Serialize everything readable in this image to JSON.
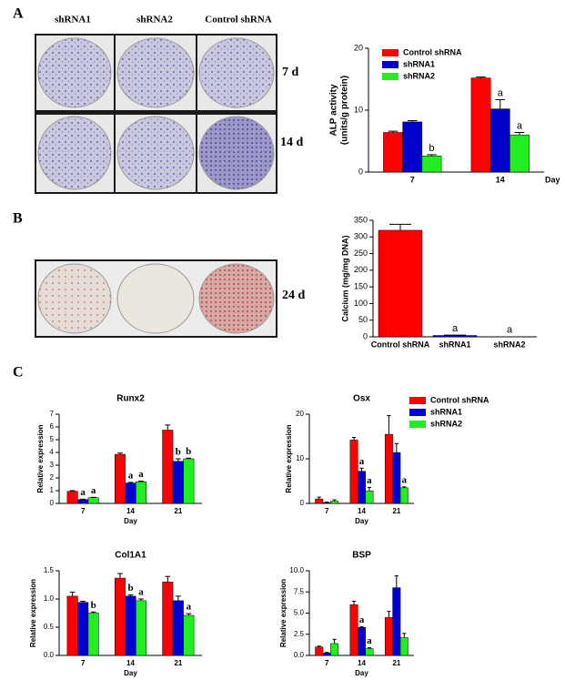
{
  "panel_labels": [
    "A",
    "B",
    "C"
  ],
  "photo_labels": {
    "columns": [
      "shRNA1",
      "shRNA2",
      "Control shRNA"
    ],
    "rows": [
      "7 d",
      "14 d",
      "24 d"
    ]
  },
  "chart_data": [
    {
      "type": "grouped_bar",
      "ylabel": [
        "ALP activity",
        "(units/g protein)"
      ],
      "xlabel": "Day",
      "categories": [
        "7",
        "14"
      ],
      "ylim": [
        0,
        20
      ],
      "yticks": [
        0,
        10,
        20
      ],
      "legend": "top-left",
      "grid": false,
      "series": [
        {
          "name": "Control shRNA",
          "color": "#ff0000",
          "values": [
            6.4,
            15.2
          ],
          "errors": [
            0.2,
            0.15
          ],
          "letters": [
            null,
            null
          ]
        },
        {
          "name": "shRNA1",
          "color": "#0000cc",
          "values": [
            8.1,
            10.2
          ],
          "errors": [
            0.2,
            1.5
          ],
          "letters": [
            null,
            "a"
          ]
        },
        {
          "name": "shRNA2",
          "color": "#22ee22",
          "values": [
            2.6,
            6.0
          ],
          "errors": [
            0.2,
            0.4
          ],
          "letters": [
            "b",
            "a"
          ]
        }
      ]
    },
    {
      "type": "bar",
      "ylabel": "Calcium (mg/mg DNA)",
      "categories": [
        "Control shRNA",
        "shRNA1",
        "shRNA2"
      ],
      "values": [
        320,
        4,
        0.5
      ],
      "errors": [
        18,
        1,
        0
      ],
      "letters": [
        null,
        "a",
        "a"
      ],
      "colors": [
        "#ff0000",
        "#0000cc",
        "#22ee22"
      ],
      "ylim": [
        0,
        350
      ],
      "yticks": [
        0,
        50,
        100,
        150,
        200,
        250,
        300,
        350
      ],
      "grid": false
    },
    {
      "type": "grouped_bar",
      "title": "Runx2",
      "ylabel": "Relative expression",
      "xlabel": "Day",
      "categories": [
        "7",
        "14",
        "21"
      ],
      "ylim": [
        0,
        7
      ],
      "yticks": [
        0,
        1,
        2,
        3,
        4,
        5,
        6,
        7
      ],
      "grid": false,
      "series": [
        {
          "color": "#ff0000",
          "values": [
            0.95,
            3.85,
            5.75
          ],
          "errors": [
            0.05,
            0.1,
            0.4
          ],
          "letters": [
            null,
            null,
            null
          ]
        },
        {
          "color": "#0000cc",
          "values": [
            0.3,
            1.6,
            3.3
          ],
          "errors": [
            0.03,
            0.05,
            0.2
          ],
          "letters": [
            "a",
            "a",
            "b"
          ]
        },
        {
          "color": "#22ee22",
          "values": [
            0.45,
            1.7,
            3.5
          ],
          "errors": [
            0.03,
            0.05,
            0.05
          ],
          "letters": [
            "a",
            "a",
            "b"
          ]
        }
      ]
    },
    {
      "type": "grouped_bar",
      "title": "Osx",
      "ylabel": "Relative expression",
      "xlabel": "Day",
      "categories": [
        "7",
        "14",
        "21"
      ],
      "ylim": [
        0,
        20
      ],
      "yticks": [
        0,
        10,
        20
      ],
      "legend": "outside-right",
      "grid": false,
      "series": [
        {
          "name": "Control shRNA",
          "color": "#ff0000",
          "values": [
            1.0,
            14.2,
            15.5
          ],
          "errors": [
            0.4,
            0.6,
            4.2
          ],
          "letters": [
            null,
            null,
            null
          ]
        },
        {
          "name": "shRNA1",
          "color": "#0000cc",
          "values": [
            0.2,
            7.2,
            11.4
          ],
          "errors": [
            0.1,
            0.7,
            2
          ],
          "letters": [
            null,
            "a",
            null
          ]
        },
        {
          "name": "shRNA2",
          "color": "#22ee22",
          "values": [
            0.5,
            2.8,
            3.5
          ],
          "errors": [
            0.3,
            0.8,
            0.2
          ],
          "letters": [
            null,
            "a",
            "a"
          ]
        }
      ]
    },
    {
      "type": "grouped_bar",
      "title": "Col1A1",
      "ylabel": "Relative expression",
      "xlabel": "Day",
      "categories": [
        "7",
        "14",
        "21"
      ],
      "ylim": [
        0,
        1.5
      ],
      "yticks": [
        {
          "value": 0,
          "label": "0.0"
        },
        0.5,
        {
          "value": 1,
          "label": "1.0"
        },
        1.5
      ],
      "grid": false,
      "series": [
        {
          "color": "#ff0000",
          "values": [
            1.05,
            1.37,
            1.3
          ],
          "errors": [
            0.07,
            0.08,
            0.1
          ],
          "letters": [
            null,
            null,
            null
          ]
        },
        {
          "color": "#0000cc",
          "values": [
            0.94,
            1.05,
            0.97
          ],
          "errors": [
            0.02,
            0.02,
            0.08
          ],
          "letters": [
            null,
            "b",
            null
          ]
        },
        {
          "color": "#22ee22",
          "values": [
            0.75,
            0.97,
            0.71
          ],
          "errors": [
            0.02,
            0.03,
            0.03
          ],
          "letters": [
            "b",
            "a",
            "a"
          ]
        }
      ]
    },
    {
      "type": "grouped_bar",
      "title": "BSP",
      "ylabel": "Relative expression",
      "xlabel": "Day",
      "categories": [
        "7",
        "14",
        "21"
      ],
      "ylim": [
        0,
        10
      ],
      "yticks": [
        {
          "value": 0,
          "label": "0.0"
        },
        2.5,
        {
          "value": 5,
          "label": "5.0"
        },
        7.5,
        {
          "value": 10,
          "label": "10.0"
        }
      ],
      "grid": false,
      "series": [
        {
          "color": "#ff0000",
          "values": [
            1.0,
            6.0,
            4.5
          ],
          "errors": [
            0.1,
            0.4,
            0.7
          ],
          "letters": [
            null,
            null,
            null
          ]
        },
        {
          "color": "#0000cc",
          "values": [
            0.3,
            3.3,
            8.0
          ],
          "errors": [
            0.05,
            0.1,
            1.4
          ],
          "letters": [
            null,
            "a",
            null
          ]
        },
        {
          "color": "#22ee22",
          "values": [
            1.4,
            0.8,
            2.1
          ],
          "errors": [
            0.5,
            0.1,
            0.5
          ],
          "letters": [
            null,
            "a",
            null
          ]
        }
      ]
    }
  ]
}
